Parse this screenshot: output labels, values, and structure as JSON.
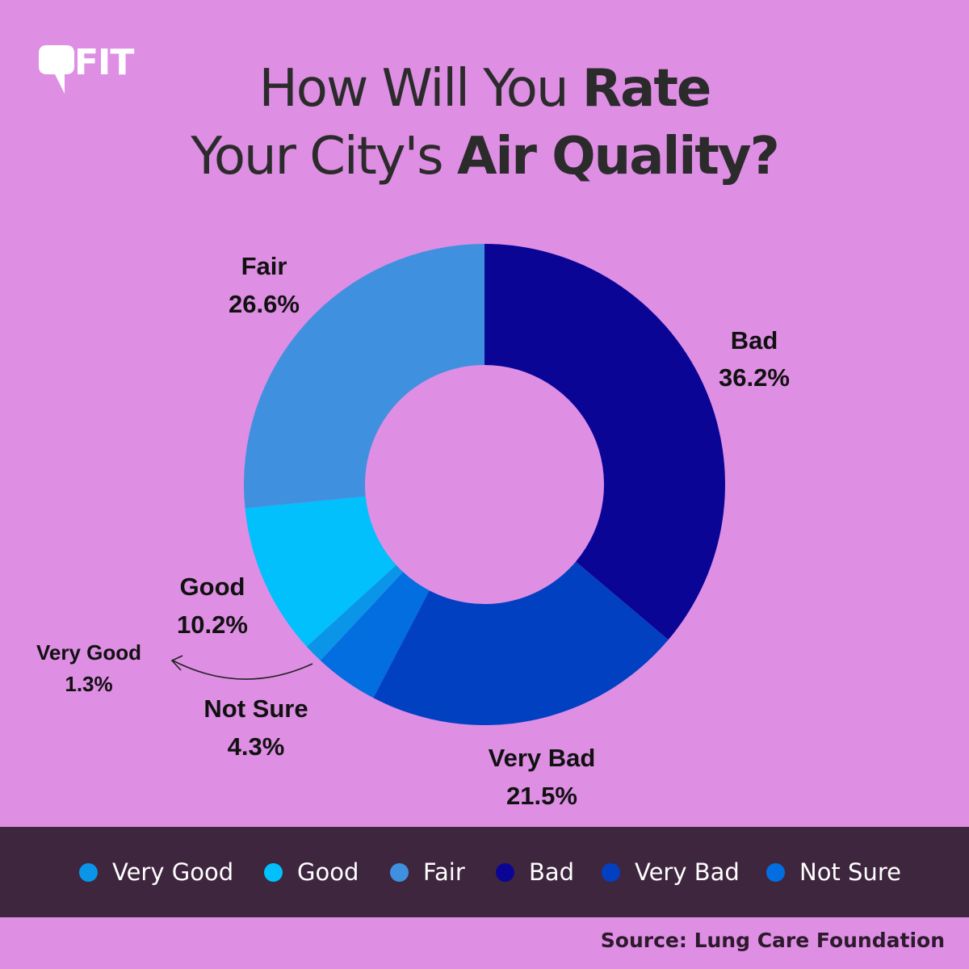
{
  "brand": {
    "logo_text": "FIT"
  },
  "title": {
    "line1_light": "How Will You ",
    "line1_bold": "Rate",
    "line2_light": "Your City's ",
    "line2_bold": "Air Quality?"
  },
  "chart_data": {
    "type": "pie",
    "donut": true,
    "title": "How Will You Rate Your City's Air Quality?",
    "slices": [
      {
        "name": "Bad",
        "value": 36.2,
        "label": "36.2%",
        "color": "#0b0596"
      },
      {
        "name": "Very Bad",
        "value": 21.5,
        "label": "21.5%",
        "color": "#0240c2"
      },
      {
        "name": "Not Sure",
        "value": 4.3,
        "label": "4.3%",
        "color": "#026ee0"
      },
      {
        "name": "Very Good",
        "value": 1.3,
        "label": "1.3%",
        "color": "#0a95e8"
      },
      {
        "name": "Good",
        "value": 10.2,
        "label": "10.2%",
        "color": "#01c0fc"
      },
      {
        "name": "Fair",
        "value": 26.6,
        "label": "26.6%",
        "color": "#4090e0"
      }
    ],
    "legend": [
      {
        "name": "Very Good",
        "color": "#0a95e8"
      },
      {
        "name": "Good",
        "color": "#01c0fc"
      },
      {
        "name": "Fair",
        "color": "#4090e0"
      },
      {
        "name": "Bad",
        "color": "#0b0596"
      },
      {
        "name": "Very Bad",
        "color": "#0240c2"
      },
      {
        "name": "Not Sure",
        "color": "#026ee0"
      }
    ],
    "legend_position": "bottom"
  },
  "source": "Source: Lung Care Foundation",
  "colors": {
    "background": "#de8ee3",
    "legend_bar": "#3f263f"
  }
}
